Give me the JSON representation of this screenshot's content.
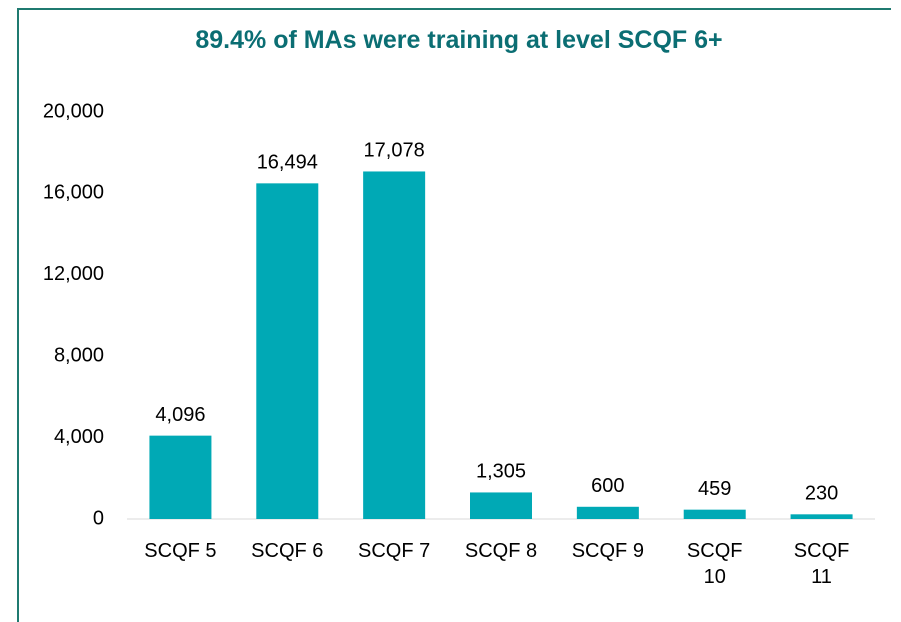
{
  "chart_data": {
    "type": "bar",
    "title": "89.4% of MAs were training at level SCQF 6+",
    "categories": [
      "SCQF 5",
      "SCQF 6",
      "SCQF 7",
      "SCQF 8",
      "SCQF 9",
      "SCQF 10",
      "SCQF 11"
    ],
    "values": [
      4096,
      16494,
      17078,
      1305,
      600,
      459,
      230
    ],
    "value_labels": [
      "4,096",
      "16,494",
      "17,078",
      "1,305",
      "600",
      "459",
      "230"
    ],
    "color": "#00a9b5",
    "ylim": [
      0,
      20000
    ],
    "yticks": [
      0,
      {
        "value": 4000,
        "label": "4,000"
      },
      {
        "value": 8000,
        "label": "8,000"
      },
      {
        "value": 12000,
        "label": "12,000"
      },
      {
        "value": 16000,
        "label": "16,000"
      },
      {
        "value": 20000,
        "label": "20,000"
      }
    ],
    "grid": false
  }
}
